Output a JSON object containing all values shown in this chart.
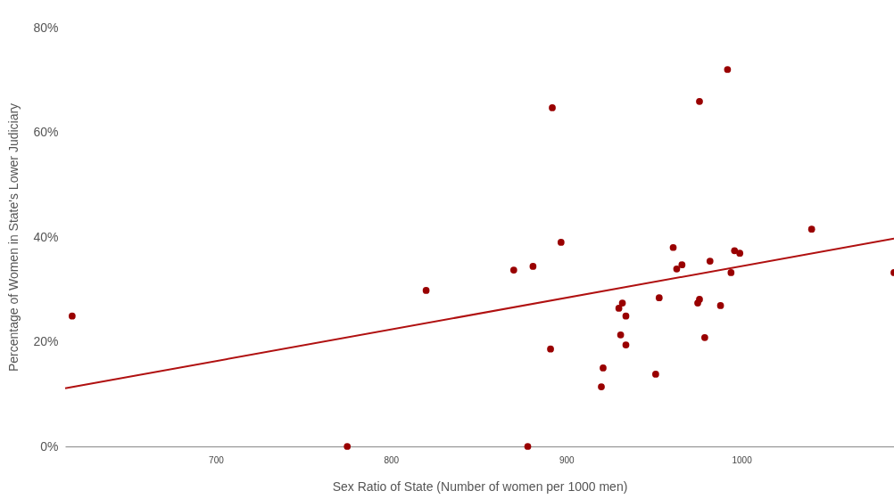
{
  "chart_data": {
    "type": "scatter",
    "xlabel": "Sex Ratio of State (Number of women per 1000 men)",
    "ylabel": "Percentage of Women in State's Lower Judiciary",
    "xlim": [
      614,
      1087
    ],
    "ylim": [
      0,
      80
    ],
    "xticks": [
      700,
      800,
      900,
      1000
    ],
    "yticks": [
      {
        "value": 0,
        "label": "0%"
      },
      {
        "value": 20,
        "label": "20%"
      },
      {
        "value": 40,
        "label": "40%"
      },
      {
        "value": 60,
        "label": "60%"
      },
      {
        "value": 80,
        "label": "80%"
      }
    ],
    "grid": false,
    "marker": "circle",
    "series": [
      {
        "color": "#990000",
        "x": [
          618,
          775,
          820,
          870,
          881,
          897,
          891,
          892,
          878,
          921,
          920,
          931,
          932,
          930,
          934,
          934,
          951,
          953,
          961,
          963,
          966,
          976,
          975,
          979,
          982,
          988,
          994,
          996,
          999,
          992,
          976,
          1040,
          1087
        ],
        "values": [
          24.9,
          0,
          29.8,
          33.7,
          34.4,
          39,
          18.6,
          64.7,
          0,
          15,
          11.4,
          21.3,
          27.4,
          26.4,
          24.9,
          19.4,
          13.8,
          28.4,
          38,
          33.9,
          34.7,
          28.1,
          27.4,
          20.8,
          35.4,
          26.9,
          33.2,
          37.4,
          36.9,
          72,
          65.9,
          41.5,
          33.2
        ]
      },
      {
        "type": "line",
        "marker": "none",
        "color": "#b01010",
        "x": [
          614,
          1087
        ],
        "values": [
          11.1,
          39.7
        ]
      }
    ]
  }
}
